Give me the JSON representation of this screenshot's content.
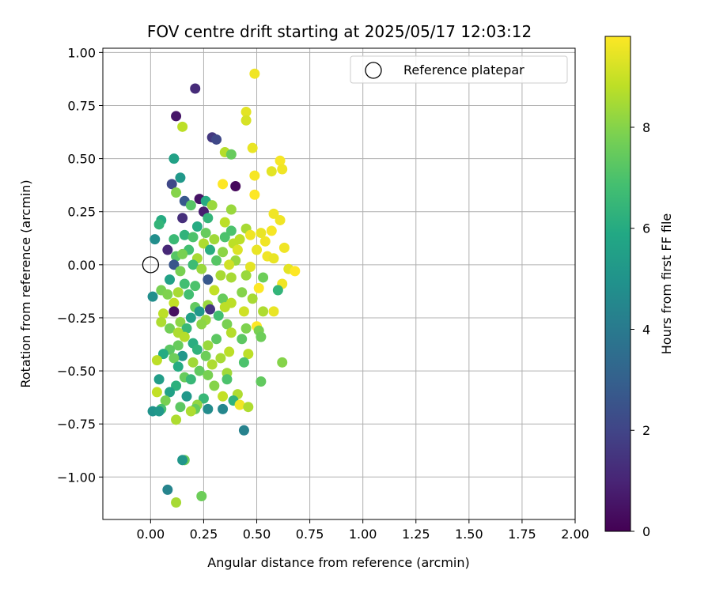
{
  "chart_data": {
    "type": "scatter",
    "title": "FOV centre drift starting at 2025/05/17 12:03:12",
    "xlabel": "Angular distance from reference (arcmin)",
    "ylabel": "Rotation from reference (arcmin)",
    "xlim": [
      -0.225,
      2.0
    ],
    "ylim": [
      -1.2,
      1.02
    ],
    "xticks": [
      0.0,
      0.25,
      0.5,
      0.75,
      1.0,
      1.25,
      1.5,
      1.75,
      2.0
    ],
    "xtick_labels": [
      "0.00",
      "0.25",
      "0.50",
      "0.75",
      "1.00",
      "1.25",
      "1.50",
      "1.75",
      "2.00"
    ],
    "yticks": [
      1.0,
      0.75,
      0.5,
      0.25,
      0.0,
      -0.25,
      -0.5,
      -0.75,
      -1.0
    ],
    "ytick_labels": [
      "1.00",
      "0.75",
      "0.50",
      "0.25",
      "0.00",
      "−0.25",
      "−0.50",
      "−0.75",
      "−1.00"
    ],
    "grid": true,
    "legend": {
      "label": "Reference platepar",
      "position": "top-right"
    },
    "reference_point": {
      "x": 0.0,
      "y": 0.0
    },
    "colorbar": {
      "label": "Hours from first FF file",
      "colormap": "viridis",
      "range": [
        0,
        9.8
      ],
      "ticks": [
        0,
        2,
        4,
        6,
        8
      ],
      "tick_labels": [
        "0",
        "2",
        "4",
        "6",
        "8"
      ]
    },
    "series": [
      {
        "name": "FOV centre drift",
        "points": [
          [
            0.21,
            0.83,
            1.2
          ],
          [
            0.49,
            0.9,
            9.6
          ],
          [
            0.12,
            0.7,
            0.6
          ],
          [
            0.15,
            0.65,
            8.8
          ],
          [
            0.29,
            0.6,
            1.6
          ],
          [
            0.31,
            0.59,
            2.1
          ],
          [
            0.45,
            0.72,
            9.4
          ],
          [
            0.45,
            0.68,
            9.2
          ],
          [
            0.48,
            0.55,
            9.5
          ],
          [
            0.35,
            0.53,
            8.7
          ],
          [
            0.38,
            0.52,
            7.5
          ],
          [
            0.11,
            0.5,
            5.6
          ],
          [
            0.61,
            0.49,
            9.7
          ],
          [
            0.62,
            0.45,
            9.6
          ],
          [
            0.57,
            0.44,
            9.4
          ],
          [
            0.49,
            0.42,
            9.7
          ],
          [
            0.14,
            0.41,
            5.2
          ],
          [
            0.1,
            0.38,
            2.1
          ],
          [
            0.34,
            0.38,
            9.8
          ],
          [
            0.4,
            0.37,
            0.2
          ],
          [
            0.12,
            0.34,
            8.0
          ],
          [
            0.49,
            0.33,
            9.8
          ],
          [
            0.23,
            0.31,
            0.5
          ],
          [
            0.16,
            0.3,
            2.7
          ],
          [
            0.26,
            0.3,
            6.0
          ],
          [
            0.19,
            0.28,
            7.2
          ],
          [
            0.29,
            0.28,
            8.3
          ],
          [
            0.25,
            0.25,
            0.8
          ],
          [
            0.38,
            0.26,
            8.3
          ],
          [
            0.15,
            0.22,
            1.3
          ],
          [
            0.05,
            0.21,
            6.0
          ],
          [
            0.04,
            0.19,
            6.4
          ],
          [
            0.27,
            0.22,
            6.4
          ],
          [
            0.35,
            0.2,
            8.8
          ],
          [
            0.58,
            0.24,
            9.6
          ],
          [
            0.61,
            0.21,
            9.6
          ],
          [
            0.22,
            0.18,
            6.0
          ],
          [
            0.38,
            0.16,
            7.0
          ],
          [
            0.45,
            0.17,
            8.5
          ],
          [
            0.52,
            0.15,
            9.5
          ],
          [
            0.57,
            0.16,
            9.7
          ],
          [
            0.16,
            0.14,
            6.3
          ],
          [
            0.26,
            0.15,
            7.5
          ],
          [
            0.3,
            0.12,
            8.4
          ],
          [
            0.47,
            0.14,
            9.6
          ],
          [
            0.02,
            0.12,
            4.8
          ],
          [
            0.11,
            0.12,
            6.6
          ],
          [
            0.2,
            0.13,
            7.0
          ],
          [
            0.35,
            0.13,
            7.0
          ],
          [
            0.42,
            0.12,
            8.8
          ],
          [
            0.54,
            0.11,
            9.6
          ],
          [
            0.25,
            0.1,
            8.6
          ],
          [
            0.39,
            0.1,
            8.8
          ],
          [
            0.08,
            0.07,
            1.1
          ],
          [
            0.18,
            0.07,
            6.8
          ],
          [
            0.28,
            0.07,
            6.1
          ],
          [
            0.34,
            0.06,
            8.1
          ],
          [
            0.41,
            0.07,
            9.3
          ],
          [
            0.5,
            0.07,
            9.5
          ],
          [
            0.63,
            0.08,
            9.6
          ],
          [
            0.12,
            0.04,
            7.2
          ],
          [
            0.15,
            0.05,
            7.8
          ],
          [
            0.22,
            0.03,
            8.5
          ],
          [
            0.31,
            0.02,
            7.2
          ],
          [
            0.4,
            0.02,
            8.3
          ],
          [
            0.55,
            0.04,
            9.6
          ],
          [
            0.58,
            0.03,
            9.5
          ],
          [
            0.11,
            0.0,
            2.6
          ],
          [
            0.2,
            0.0,
            6.7
          ],
          [
            0.37,
            0.0,
            9.1
          ],
          [
            0.47,
            -0.01,
            9.4
          ],
          [
            0.65,
            -0.02,
            9.4
          ],
          [
            0.68,
            -0.03,
            9.8
          ],
          [
            0.14,
            -0.03,
            7.8
          ],
          [
            0.24,
            -0.02,
            8.3
          ],
          [
            0.33,
            -0.05,
            8.5
          ],
          [
            0.45,
            -0.05,
            8.3
          ],
          [
            0.09,
            -0.07,
            5.6
          ],
          [
            0.27,
            -0.07,
            2.7
          ],
          [
            0.38,
            -0.06,
            8.5
          ],
          [
            0.53,
            -0.06,
            7.6
          ],
          [
            0.16,
            -0.09,
            6.8
          ],
          [
            0.21,
            -0.1,
            7.0
          ],
          [
            0.51,
            -0.11,
            9.8
          ],
          [
            0.62,
            -0.09,
            9.6
          ],
          [
            0.05,
            -0.12,
            7.8
          ],
          [
            0.13,
            -0.13,
            8.5
          ],
          [
            0.3,
            -0.12,
            8.9
          ],
          [
            0.43,
            -0.13,
            8.0
          ],
          [
            0.6,
            -0.12,
            6.4
          ],
          [
            0.01,
            -0.15,
            4.8
          ],
          [
            0.08,
            -0.14,
            7.9
          ],
          [
            0.18,
            -0.14,
            6.8
          ],
          [
            0.34,
            -0.16,
            7.5
          ],
          [
            0.48,
            -0.16,
            8.5
          ],
          [
            0.11,
            -0.18,
            8.9
          ],
          [
            0.27,
            -0.19,
            8.3
          ],
          [
            0.38,
            -0.18,
            8.8
          ],
          [
            0.21,
            -0.2,
            7.4
          ],
          [
            0.35,
            -0.2,
            8.8
          ],
          [
            0.11,
            -0.22,
            0.4
          ],
          [
            0.23,
            -0.22,
            5.2
          ],
          [
            0.53,
            -0.22,
            8.6
          ],
          [
            0.58,
            -0.22,
            9.5
          ],
          [
            0.06,
            -0.23,
            8.8
          ],
          [
            0.28,
            -0.21,
            1.5
          ],
          [
            0.44,
            -0.22,
            9.1
          ],
          [
            0.19,
            -0.25,
            5.5
          ],
          [
            0.32,
            -0.24,
            6.8
          ],
          [
            0.05,
            -0.27,
            8.6
          ],
          [
            0.14,
            -0.27,
            8.1
          ],
          [
            0.26,
            -0.26,
            8.3
          ],
          [
            0.36,
            -0.28,
            7.8
          ],
          [
            0.5,
            -0.29,
            9.9
          ],
          [
            0.09,
            -0.3,
            7.7
          ],
          [
            0.17,
            -0.3,
            6.5
          ],
          [
            0.24,
            -0.28,
            8.1
          ],
          [
            0.45,
            -0.3,
            7.9
          ],
          [
            0.13,
            -0.32,
            8.6
          ],
          [
            0.38,
            -0.32,
            8.7
          ],
          [
            0.51,
            -0.31,
            7.8
          ],
          [
            0.16,
            -0.34,
            8.7
          ],
          [
            0.31,
            -0.35,
            7.3
          ],
          [
            0.43,
            -0.35,
            7.3
          ],
          [
            0.52,
            -0.34,
            7.6
          ],
          [
            0.2,
            -0.37,
            6.1
          ],
          [
            0.27,
            -0.38,
            8.3
          ],
          [
            0.13,
            -0.38,
            7.5
          ],
          [
            0.09,
            -0.4,
            7.3
          ],
          [
            0.22,
            -0.4,
            6.3
          ],
          [
            0.37,
            -0.41,
            8.8
          ],
          [
            0.46,
            -0.42,
            8.8
          ],
          [
            0.06,
            -0.42,
            6.0
          ],
          [
            0.15,
            -0.43,
            5.2
          ],
          [
            0.26,
            -0.43,
            7.6
          ],
          [
            0.33,
            -0.44,
            8.5
          ],
          [
            0.03,
            -0.45,
            8.8
          ],
          [
            0.11,
            -0.44,
            7.6
          ],
          [
            0.2,
            -0.46,
            8.4
          ],
          [
            0.29,
            -0.47,
            8.6
          ],
          [
            0.44,
            -0.46,
            7.0
          ],
          [
            0.62,
            -0.46,
            8.0
          ],
          [
            0.13,
            -0.48,
            6.0
          ],
          [
            0.23,
            -0.5,
            7.4
          ],
          [
            0.36,
            -0.51,
            8.4
          ],
          [
            0.27,
            -0.52,
            7.8
          ],
          [
            0.16,
            -0.53,
            7.5
          ],
          [
            0.04,
            -0.54,
            5.4
          ],
          [
            0.19,
            -0.54,
            6.5
          ],
          [
            0.36,
            -0.54,
            7.0
          ],
          [
            0.52,
            -0.55,
            7.4
          ],
          [
            0.12,
            -0.57,
            6.2
          ],
          [
            0.3,
            -0.57,
            8.0
          ],
          [
            0.09,
            -0.6,
            5.6
          ],
          [
            0.03,
            -0.6,
            8.9
          ],
          [
            0.17,
            -0.62,
            5.2
          ],
          [
            0.25,
            -0.63,
            6.5
          ],
          [
            0.34,
            -0.62,
            8.9
          ],
          [
            0.41,
            -0.61,
            8.6
          ],
          [
            0.07,
            -0.64,
            7.8
          ],
          [
            0.22,
            -0.66,
            8.2
          ],
          [
            0.39,
            -0.64,
            6.3
          ],
          [
            0.42,
            -0.66,
            9.6
          ],
          [
            0.46,
            -0.67,
            8.6
          ],
          [
            0.05,
            -0.68,
            6.9
          ],
          [
            0.14,
            -0.67,
            7.3
          ],
          [
            0.21,
            -0.68,
            7.5
          ],
          [
            0.27,
            -0.68,
            4.7
          ],
          [
            0.34,
            -0.68,
            4.5
          ],
          [
            0.01,
            -0.69,
            5.0
          ],
          [
            0.04,
            -0.69,
            5.2
          ],
          [
            0.19,
            -0.69,
            8.6
          ],
          [
            0.12,
            -0.73,
            8.6
          ],
          [
            0.44,
            -0.78,
            4.3
          ],
          [
            0.16,
            -0.92,
            7.6
          ],
          [
            0.15,
            -0.92,
            5.1
          ],
          [
            0.08,
            -1.06,
            4.4
          ],
          [
            0.24,
            -1.09,
            7.6
          ],
          [
            0.12,
            -1.12,
            8.5
          ]
        ]
      }
    ]
  }
}
